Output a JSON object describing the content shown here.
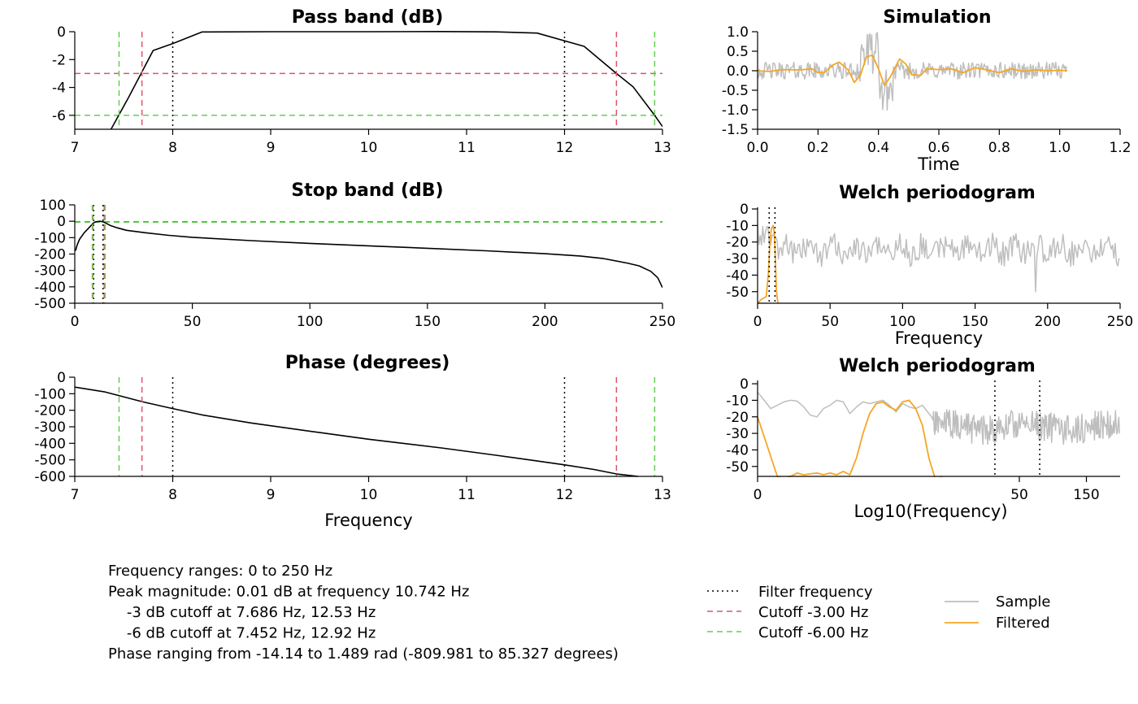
{
  "colors": {
    "filter_line": "#000000",
    "cutoff3": "#DF536B",
    "cutoff6": "#61D04F",
    "sample": "#BEBEBE",
    "filtered": "#F5A623"
  },
  "info": [
    "Frequency ranges: 0 to 250 Hz",
    "Peak magnitude: 0.01 dB at frequency 10.742 Hz",
    "    -3 dB cutoff at 7.686 Hz, 12.53 Hz",
    "    -6 dB cutoff at 7.452 Hz, 12.92 Hz",
    "Phase ranging from -14.14 to 1.489 rad (-809.981 to 85.327 degrees)"
  ],
  "legend_lines": [
    {
      "label": "Filter frequency",
      "style": "dotted",
      "color": "#000000"
    },
    {
      "label": "Cutoff -3.00 Hz",
      "style": "dashed",
      "color": "#DF536B"
    },
    {
      "label": "Cutoff -6.00 Hz",
      "style": "dashed",
      "color": "#61D04F"
    }
  ],
  "legend_series": [
    {
      "label": "Sample",
      "color": "#BEBEBE"
    },
    {
      "label": "Filtered",
      "color": "#F5A623"
    }
  ],
  "chart_data": [
    {
      "id": "passband",
      "type": "line",
      "title": "Pass band (dB)",
      "xlabel": "",
      "ylabel": "",
      "xlim": [
        7,
        13
      ],
      "ylim": [
        -7,
        0
      ],
      "xticks": [
        7,
        8,
        9,
        10,
        11,
        12,
        13
      ],
      "yticks": [
        0,
        -2,
        -4,
        -6
      ],
      "vlines": [
        {
          "x": 8,
          "kind": "filter"
        },
        {
          "x": 12,
          "kind": "filter"
        },
        {
          "x": 7.686,
          "kind": "cut3"
        },
        {
          "x": 12.53,
          "kind": "cut3"
        },
        {
          "x": 7.452,
          "kind": "cut6"
        },
        {
          "x": 12.92,
          "kind": "cut6"
        }
      ],
      "hlines": [
        {
          "y": -3,
          "kind": "cut3"
        },
        {
          "y": -6,
          "kind": "cut6"
        }
      ],
      "series": [
        {
          "kind": "response",
          "x": [
            7.37,
            7.55,
            7.8,
            8.0,
            8.3,
            9.0,
            10.0,
            10.742,
            11.3,
            11.72,
            12.2,
            12.53,
            12.7,
            12.92,
            13.0
          ],
          "y": [
            -7,
            -4.7,
            -1.35,
            -0.85,
            -0.02,
            0,
            0,
            0.01,
            -0.01,
            -0.1,
            -1.05,
            -3.0,
            -3.95,
            -6.0,
            -6.8
          ]
        }
      ]
    },
    {
      "id": "stopband",
      "type": "line",
      "title": "Stop band (dB)",
      "xlabel": "",
      "ylabel": "",
      "xlim": [
        0,
        250
      ],
      "ylim": [
        -500,
        100
      ],
      "xticks": [
        0,
        50,
        100,
        150,
        200,
        250
      ],
      "yticks": [
        100,
        0,
        -100,
        -200,
        -300,
        -400,
        -500
      ],
      "vlines": [
        {
          "x": 8,
          "kind": "filter"
        },
        {
          "x": 12,
          "kind": "filter"
        },
        {
          "x": 7.686,
          "kind": "cut3"
        },
        {
          "x": 12.53,
          "kind": "cut3"
        },
        {
          "x": 7.452,
          "kind": "cut6"
        },
        {
          "x": 12.92,
          "kind": "cut6"
        }
      ],
      "hlines": [
        {
          "y": -3,
          "kind": "cut3"
        },
        {
          "y": -6,
          "kind": "cut6"
        }
      ],
      "series": [
        {
          "kind": "response",
          "x": [
            0.3,
            1,
            2,
            4,
            6,
            8,
            9,
            10.7,
            12,
            13,
            15,
            18,
            22,
            30,
            40,
            50,
            75,
            100,
            125,
            150,
            175,
            200,
            215,
            225,
            235,
            240,
            245,
            248,
            250
          ],
          "y": [
            -180,
            -145,
            -110,
            -70,
            -40,
            -10,
            -3,
            0,
            -3,
            -10,
            -25,
            -40,
            -55,
            -70,
            -86,
            -98,
            -118,
            -135,
            -150,
            -165,
            -180,
            -198,
            -212,
            -228,
            -255,
            -272,
            -305,
            -345,
            -405
          ]
        }
      ]
    },
    {
      "id": "phase",
      "type": "line",
      "title": "Phase (degrees)",
      "xlabel": "Frequency",
      "ylabel": "",
      "xlim": [
        7,
        13
      ],
      "ylim": [
        -600,
        0
      ],
      "xticks": [
        7,
        8,
        9,
        10,
        11,
        12,
        13
      ],
      "yticks": [
        0,
        -100,
        -200,
        -300,
        -400,
        -500,
        -600
      ],
      "vlines": [
        {
          "x": 8,
          "kind": "filter"
        },
        {
          "x": 12,
          "kind": "filter"
        },
        {
          "x": 7.686,
          "kind": "cut3"
        },
        {
          "x": 12.53,
          "kind": "cut3"
        },
        {
          "x": 7.452,
          "kind": "cut6"
        },
        {
          "x": 12.92,
          "kind": "cut6"
        }
      ],
      "hlines": [],
      "series": [
        {
          "kind": "response",
          "x": [
            7.0,
            7.3,
            7.7,
            8.0,
            8.3,
            8.8,
            9.5,
            10.0,
            10.742,
            11.3,
            11.7,
            12.0,
            12.3,
            12.53,
            12.75
          ],
          "y": [
            -60,
            -88,
            -150,
            -190,
            -228,
            -277,
            -335,
            -375,
            -428,
            -472,
            -505,
            -530,
            -558,
            -585,
            -600
          ]
        }
      ]
    },
    {
      "id": "simulation",
      "type": "line",
      "title": "Simulation",
      "xlabel": "Time",
      "ylabel": "",
      "xlim": [
        0,
        1.2
      ],
      "ylim": [
        -1.5,
        1
      ],
      "xticks": [
        "0.0",
        "0.2",
        "0.4",
        "0.6",
        "0.8",
        "1.0",
        "1.2"
      ],
      "yticks": [
        "1.0",
        "0.5",
        "0.0",
        "-0.5",
        "-1.0",
        "-1.5"
      ],
      "series": [
        {
          "name": "Sample",
          "kind": "noise",
          "generator": "simulation_sample",
          "x_range": [
            0,
            1.025
          ],
          "amplitude": 0.25
        },
        {
          "name": "Filtered",
          "x": [
            0,
            0.04,
            0.08,
            0.14,
            0.18,
            0.2,
            0.22,
            0.25,
            0.27,
            0.3,
            0.32,
            0.34,
            0.36,
            0.38,
            0.4,
            0.42,
            0.44,
            0.47,
            0.49,
            0.51,
            0.54,
            0.56,
            0.6,
            0.64,
            0.68,
            0.72,
            0.76,
            0.8,
            0.84,
            0.88,
            0.92,
            0.96,
            1.0,
            1.025
          ],
          "y": [
            0,
            -0.02,
            0.03,
            0.02,
            0.05,
            -0.05,
            -0.05,
            0.15,
            0.22,
            0.02,
            -0.3,
            -0.12,
            0.35,
            0.4,
            0.05,
            -0.38,
            -0.15,
            0.3,
            0.18,
            -0.1,
            -0.12,
            0.05,
            0.03,
            0.05,
            -0.05,
            0.08,
            0.02,
            -0.05,
            0.05,
            -0.02,
            0.02,
            0.0,
            0.01,
            0.0
          ]
        }
      ]
    },
    {
      "id": "welch1",
      "type": "line",
      "title": "Welch periodogram",
      "xlabel": "Frequency",
      "ylabel": "",
      "xlim": [
        0,
        250
      ],
      "ylim": [
        -57,
        1
      ],
      "xticks": [
        0,
        50,
        100,
        150,
        200,
        250
      ],
      "yticks": [
        0,
        -10,
        -20,
        -30,
        -40,
        -50
      ],
      "vlines": [
        {
          "x": 8,
          "kind": "filter"
        },
        {
          "x": 12,
          "kind": "filter"
        }
      ],
      "series": [
        {
          "name": "Sample",
          "kind": "noise",
          "generator": "welch_sample",
          "x_range": [
            0,
            250
          ]
        },
        {
          "name": "Filtered",
          "x": [
            0.5,
            2,
            4,
            6,
            7.5,
            8.5,
            9.5,
            10.7,
            11.5,
            12.3,
            13,
            14
          ],
          "y": [
            -57,
            -55,
            -54,
            -53,
            -38,
            -20,
            -12,
            -10,
            -14,
            -30,
            -50,
            -57
          ]
        }
      ]
    },
    {
      "id": "welch2",
      "type": "line",
      "title": "Welch periodogram",
      "xlabel": "Log10(Frequency)",
      "ylabel": "",
      "scale": "log",
      "xlim": [
        0,
        250
      ],
      "ylim": [
        -56,
        2
      ],
      "xticks": [
        0,
        50,
        150
      ],
      "yticks": [
        0,
        -10,
        -20,
        -30,
        -40,
        -50
      ],
      "vlines": [
        {
          "x": 8,
          "kind": "filter"
        },
        {
          "x": 12,
          "kind": "filter"
        }
      ],
      "series": [
        {
          "name": "Sample",
          "kind": "noise",
          "generator": "welch_log_sample",
          "x": [
            0.0,
            0.5,
            1.0,
            1.5,
            2.0,
            2.5,
            3.0,
            3.5,
            4.0,
            4.5,
            5.0,
            5.5,
            6.0,
            6.5,
            7.0,
            7.5,
            8.0,
            8.5,
            9.0,
            9.5,
            10.0,
            10.5,
            11.0,
            11.5,
            12.0,
            12.5,
            13.0
          ],
          "y": [
            -5,
            -10,
            -15,
            -13,
            -11,
            -10,
            -10.5,
            -14,
            -19,
            -20,
            -15,
            -13,
            -10,
            -11,
            -18,
            -14,
            -11,
            -12,
            -11,
            -10,
            -13,
            -17,
            -12,
            -14,
            -15,
            -13,
            -18
          ]
        },
        {
          "name": "Filtered",
          "x": [
            0.0,
            0.5,
            1.0,
            1.5,
            2.0,
            2.5,
            3.0,
            3.5,
            4.0,
            4.5,
            5.0,
            5.5,
            6.0,
            6.5,
            7.0,
            7.5,
            8.0,
            8.5,
            9.0,
            9.5,
            10.0,
            10.5,
            11.0,
            11.5,
            12.0,
            12.5,
            13.0,
            13.5,
            14.0
          ],
          "y": [
            -20,
            -32,
            -44,
            -56,
            -58,
            -56,
            -54,
            -55,
            -54.5,
            -54,
            -55,
            -54,
            -55,
            -53,
            -55,
            -45,
            -30,
            -18,
            -12,
            -11,
            -14,
            -16,
            -11,
            -10,
            -15,
            -25,
            -45,
            -58,
            -56
          ]
        }
      ]
    }
  ]
}
